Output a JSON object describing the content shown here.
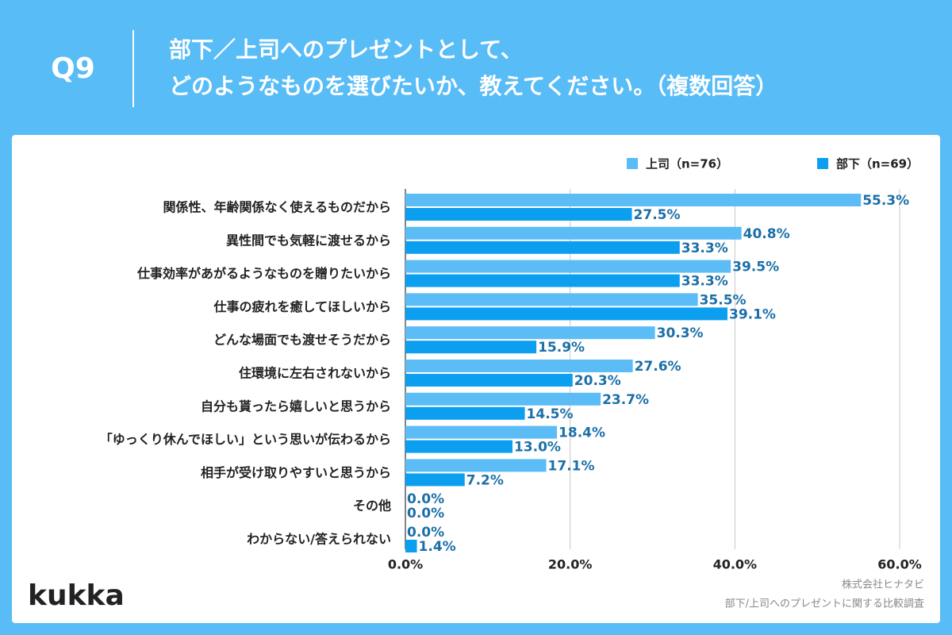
{
  "header": {
    "label": "Q9",
    "title": [
      "部下／上司へのプレゼントとして、",
      "どのようなものを選びたいか、教えてください。（複数回答）"
    ]
  },
  "chart_data": {
    "type": "bar",
    "orientation": "horizontal",
    "categories": [
      "関係性、年齢関係なく使えるものだから",
      "異性間でも気軽に渡せるから",
      "仕事効率があがるようなものを贈りたいから",
      "仕事の疲れを癒してほしいから",
      "どんな場面でも渡せそうだから",
      "住環境に左右されないから",
      "自分も貰ったら嬉しいと思うから",
      "「ゆっくり休んでほしい」という思いが伝わるから",
      "相手が受け取りやすいと思うから",
      "その他",
      "わからない/答えられない"
    ],
    "series": [
      {
        "name": "上司（n=76）",
        "color": "#5bbcf6",
        "values": [
          55.3,
          40.8,
          39.5,
          35.5,
          30.3,
          27.6,
          23.7,
          18.4,
          17.1,
          0.0,
          0.0
        ],
        "value_labels": [
          "55.3%",
          "40.8%",
          "39.5%",
          "35.5%",
          "30.3%",
          "27.6%",
          "23.7%",
          "18.4%",
          "17.1%",
          "0.0%",
          "0.0%"
        ]
      },
      {
        "name": "部下（n=69）",
        "color": "#0c9ff0",
        "values": [
          27.5,
          33.3,
          33.3,
          39.1,
          15.9,
          20.3,
          14.5,
          13.0,
          7.2,
          0.0,
          1.4
        ],
        "value_labels": [
          "27.5%",
          "33.3%",
          "33.3%",
          "39.1%",
          "15.9%",
          "20.3%",
          "14.5%",
          "13.0%",
          "7.2%",
          "0.0%",
          "1.4%"
        ]
      }
    ],
    "xlim": [
      0,
      60
    ],
    "xticks": [
      {
        "value": 0,
        "label": "0.0%"
      },
      {
        "value": 20,
        "label": "20.0%"
      },
      {
        "value": 40,
        "label": "40.0%"
      },
      {
        "value": 60,
        "label": "60.0%"
      }
    ],
    "grid": true,
    "legend": "top-right"
  },
  "footer": {
    "logo": "kukka",
    "source": [
      "株式会社ヒナタビ",
      "部下/上司へのプレゼントに関する比較調査"
    ]
  }
}
